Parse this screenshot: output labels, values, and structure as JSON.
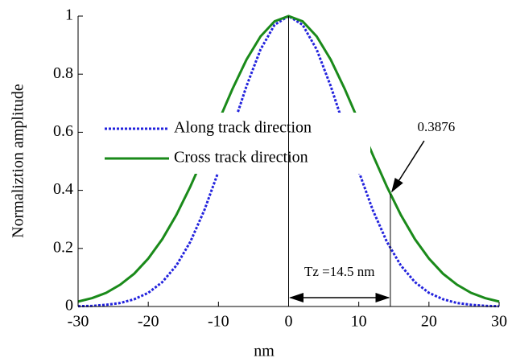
{
  "chart_data": {
    "type": "line",
    "xlabel": "nm",
    "ylabel": "Normaliztion amplitude",
    "x": [
      -30,
      -28,
      -26,
      -24,
      -22,
      -20,
      -18,
      -16,
      -14,
      -12,
      -10,
      -8,
      -6,
      -4,
      -2,
      0,
      2,
      4,
      6,
      8,
      10,
      12,
      14,
      16,
      18,
      20,
      22,
      24,
      26,
      28,
      30
    ],
    "series": [
      {
        "name": "Along track direction",
        "color": "#2222dd",
        "style": "dotted",
        "values": [
          0.001,
          0.002,
          0.006,
          0.012,
          0.025,
          0.047,
          0.084,
          0.141,
          0.223,
          0.332,
          0.465,
          0.613,
          0.759,
          0.885,
          0.97,
          1,
          0.97,
          0.885,
          0.759,
          0.613,
          0.465,
          0.332,
          0.223,
          0.141,
          0.084,
          0.047,
          0.025,
          0.012,
          0.006,
          0.002,
          0.001
        ]
      },
      {
        "name": "Cross track direction",
        "color": "#1a8a1a",
        "style": "solid",
        "values": [
          0.017,
          0.029,
          0.047,
          0.075,
          0.113,
          0.165,
          0.232,
          0.315,
          0.413,
          0.522,
          0.637,
          0.749,
          0.85,
          0.93,
          0.982,
          1,
          0.982,
          0.93,
          0.85,
          0.749,
          0.637,
          0.522,
          0.413,
          0.315,
          0.232,
          0.165,
          0.113,
          0.075,
          0.047,
          0.029,
          0.017
        ]
      }
    ],
    "xlim": [
      -30,
      30
    ],
    "ylim": [
      0,
      1
    ],
    "xticks": [
      -30,
      -20,
      -10,
      0,
      10,
      20,
      30
    ],
    "yticks": [
      0,
      0.2,
      0.4,
      0.6,
      0.8,
      1
    ],
    "legend": "upper left",
    "annotations": [
      {
        "text": "0.3876",
        "x": 14.5,
        "y": 0.3876
      },
      {
        "text": "Tz =14.5 nm",
        "x_start": 0,
        "x_end": 14.5
      }
    ]
  }
}
